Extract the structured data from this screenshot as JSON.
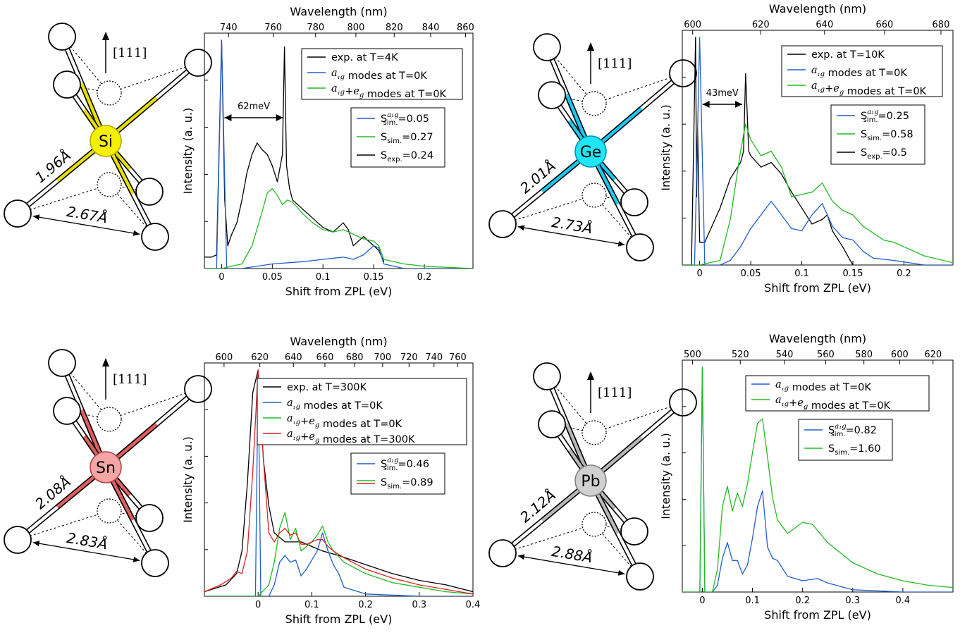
{
  "panels": [
    {
      "element": "Si",
      "atom_color": "#f5f000",
      "bond_highlight": "#e8e000",
      "atom_stroke": "#b0a800",
      "bond_length": "1.96Å",
      "distance": "2.67Å",
      "direction": "[111]",
      "wl_label": "Wavelength (nm)",
      "x_label": "Shift from ZPL (eV)",
      "y_label": "Intensity (a. u.)",
      "wl_ticks": [
        740,
        760,
        780,
        800,
        820,
        840,
        860
      ],
      "ev_ticks": [
        0,
        0.05,
        0.1,
        0.15,
        0.2
      ],
      "ev_tick_labels": [
        "0",
        "0.05",
        "0.1",
        "0.15",
        "0.2"
      ],
      "xlim_ev": [
        -0.017,
        0.248
      ],
      "zpl_nm": 737,
      "legend1": [
        {
          "pre": "exp. at T=4K",
          "italic": "",
          "post": "",
          "color": "#000000"
        },
        {
          "pre": "",
          "italic": "a₁g",
          "post": " modes at T=0K",
          "color": "#1f5fd0"
        },
        {
          "pre": "",
          "italic": "a₁g+e_g",
          "post": " modes at T=0K",
          "color": "#22bb22"
        }
      ],
      "legend2": [
        {
          "sub": "sim.",
          "sup": "a₁g",
          "value": "=0.05",
          "color": "#1f5fd0"
        },
        {
          "sub": "sim.",
          "sup": "",
          "value": "=0.27",
          "color": "#22bb22"
        },
        {
          "sub": "exp.",
          "sup": "",
          "value": "=0.24",
          "color": "#000000"
        }
      ],
      "arrow_label": "62meV",
      "arrow_range_ev": [
        0.0,
        0.062
      ]
    },
    {
      "element": "Ge",
      "atom_color": "#1ee6f5",
      "bond_highlight": "#1ec8f0",
      "atom_stroke": "#0090b0",
      "bond_length": "2.01Å",
      "distance": "2.73Å",
      "direction": "[111]",
      "wl_label": "Wavelength (nm)",
      "x_label": "Shift from ZPL (eV)",
      "y_label": "Intensity (a. u.)",
      "wl_ticks": [
        600,
        620,
        640,
        660,
        680
      ],
      "ev_ticks": [
        0,
        0.05,
        0.1,
        0.15,
        0.2
      ],
      "ev_tick_labels": [
        "0",
        "0.05",
        "0.1",
        "0.15",
        "0.2"
      ],
      "xlim_ev": [
        -0.017,
        0.248
      ],
      "zpl_nm": 602,
      "legend1": [
        {
          "pre": "exp. at T=10K",
          "italic": "",
          "post": "",
          "color": "#000000"
        },
        {
          "pre": "",
          "italic": "a₁g",
          "post": " modes at T=0K",
          "color": "#1f5fd0"
        },
        {
          "pre": "",
          "italic": "a₁g+e_g",
          "post": " modes at T=0K",
          "color": "#22bb22"
        }
      ],
      "legend2": [
        {
          "sub": "sim.",
          "sup": "a₁g",
          "value": "=0.25",
          "color": "#1f5fd0"
        },
        {
          "sub": "sim.",
          "sup": "",
          "value": "=0.58",
          "color": "#22bb22"
        },
        {
          "sub": "exp.",
          "sup": "",
          "value": "=0.5",
          "color": "#000000"
        }
      ],
      "arrow_label": "43meV",
      "arrow_range_ev": [
        0.0,
        0.043
      ]
    },
    {
      "element": "Sn",
      "atom_color": "#f4a6a6",
      "bond_highlight": "#e06060",
      "atom_stroke": "#b04040",
      "bond_length": "2.08Å",
      "distance": "2.83Å",
      "direction": "[111]",
      "wl_label": "Wavelength (nm)",
      "x_label": "Shift from ZPL (eV)",
      "y_label": "Intensity (a. u.)",
      "wl_ticks": [
        600,
        620,
        640,
        660,
        680,
        700,
        720,
        740,
        760
      ],
      "ev_ticks": [
        0,
        0.1,
        0.2,
        0.3,
        0.4
      ],
      "ev_tick_labels": [
        "0",
        "0.1",
        "0.2",
        "0.3",
        "0.4"
      ],
      "xlim_ev": [
        -0.1,
        0.4
      ],
      "zpl_nm": 619,
      "legend1": [
        {
          "pre": "exp. at T=300K",
          "italic": "",
          "post": "",
          "color": "#000000"
        },
        {
          "pre": "",
          "italic": "a₁g",
          "post": " modes at T=0K",
          "color": "#1f5fd0"
        },
        {
          "pre": "",
          "italic": "a₁g+e_g",
          "post": " modes at T=0K",
          "color": "#22bb22"
        },
        {
          "pre": "",
          "italic": "a₁g+e_g",
          "post": " modes at T=300K",
          "color": "#dd2222"
        }
      ],
      "legend2": [
        {
          "sub": "sim.",
          "sup": "a₁g",
          "value": "=0.46",
          "color": "#1f5fd0"
        },
        {
          "sub": "sim.",
          "sup": "",
          "value": "=0.89",
          "color": "#22bb22",
          "color2": "#dd2222"
        }
      ],
      "arrow_label": "",
      "arrow_range_ev": []
    },
    {
      "element": "Pb",
      "atom_color": "#d0d0d0",
      "bond_highlight": "#b8b8b8",
      "atom_stroke": "#808080",
      "bond_length": "2.12Å",
      "distance": "2.88Å",
      "direction": "[111]",
      "wl_label": "Wavelength (nm)",
      "x_label": "Shift from ZPL (eV)",
      "y_label": "Intensity (a. u.)",
      "wl_ticks": [
        500,
        520,
        540,
        560,
        580,
        600,
        620
      ],
      "ev_ticks": [
        0,
        0.1,
        0.2,
        0.3,
        0.4
      ],
      "ev_tick_labels": [
        "0",
        "0.1",
        "0.2",
        "0.3",
        "0.4"
      ],
      "xlim_ev": [
        -0.04,
        0.5
      ],
      "zpl_nm": 504,
      "legend1": [
        {
          "pre": "",
          "italic": "a₁g",
          "post": " modes at T=0K",
          "color": "#1f5fd0"
        },
        {
          "pre": "",
          "italic": "a₁g+e_g",
          "post": " modes at T=0K",
          "color": "#22bb22"
        }
      ],
      "legend2": [
        {
          "sub": "sim.",
          "sup": "a₁g",
          "value": "=0.82",
          "color": "#1f5fd0"
        },
        {
          "sub": "sim.",
          "sup": "",
          "value": "=1.60",
          "color": "#22bb22"
        }
      ],
      "arrow_label": "",
      "arrow_range_ev": []
    }
  ],
  "chart_data": [
    {
      "type": "line",
      "panel": "Si",
      "xlabel": "Shift from ZPL (eV)",
      "x2label": "Wavelength (nm)",
      "ylabel": "Intensity (a. u.)",
      "xlim": [
        -0.017,
        0.248
      ],
      "series": [
        {
          "name": "exp. at T=4K",
          "color": "#000000",
          "x": [
            -0.017,
            -0.01,
            -0.005,
            0.0,
            0.003,
            0.006,
            0.01,
            0.015,
            0.02,
            0.025,
            0.03,
            0.035,
            0.04,
            0.045,
            0.05,
            0.055,
            0.06,
            0.062,
            0.064,
            0.067,
            0.07,
            0.075,
            0.08,
            0.09,
            0.1,
            0.11,
            0.12,
            0.125,
            0.13,
            0.135,
            0.14,
            0.145,
            0.15,
            0.155,
            0.16
          ],
          "y": [
            0.05,
            0.05,
            0.06,
            1.0,
            0.3,
            0.1,
            0.15,
            0.2,
            0.3,
            0.42,
            0.5,
            0.55,
            0.52,
            0.5,
            0.45,
            0.38,
            0.5,
            0.97,
            0.45,
            0.35,
            0.3,
            0.28,
            0.26,
            0.22,
            0.18,
            0.16,
            0.2,
            0.17,
            0.1,
            0.12,
            0.14,
            0.12,
            0.1,
            0.08,
            0.03
          ]
        },
        {
          "name": "a1g modes at T=0K",
          "color": "#1f5fd0",
          "x": [
            -0.017,
            -0.005,
            0.0,
            0.005,
            0.02,
            0.05,
            0.08,
            0.1,
            0.12,
            0.13,
            0.14,
            0.15,
            0.155,
            0.16,
            0.18,
            0.248
          ],
          "y": [
            0.0,
            0.0,
            1.0,
            0.0,
            0.0,
            0.02,
            0.03,
            0.04,
            0.05,
            0.04,
            0.06,
            0.1,
            0.09,
            0.02,
            0.0,
            0.0
          ]
        },
        {
          "name": "a1g+eg modes at T=0K",
          "color": "#22bb22",
          "x": [
            -0.017,
            0.0,
            0.02,
            0.03,
            0.04,
            0.045,
            0.05,
            0.055,
            0.06,
            0.065,
            0.07,
            0.08,
            0.09,
            0.1,
            0.11,
            0.12,
            0.13,
            0.14,
            0.15,
            0.155,
            0.16,
            0.18,
            0.2,
            0.248
          ],
          "y": [
            0.0,
            0.0,
            0.02,
            0.1,
            0.25,
            0.33,
            0.35,
            0.32,
            0.28,
            0.3,
            0.29,
            0.24,
            0.2,
            0.17,
            0.16,
            0.17,
            0.15,
            0.13,
            0.12,
            0.1,
            0.04,
            0.02,
            0.01,
            0.0
          ]
        }
      ]
    },
    {
      "type": "line",
      "panel": "Ge",
      "xlabel": "Shift from ZPL (eV)",
      "x2label": "Wavelength (nm)",
      "ylabel": "Intensity (a. u.)",
      "xlim": [
        -0.017,
        0.248
      ],
      "series": [
        {
          "name": "exp. at T=10K",
          "color": "#000000",
          "x": [
            -0.017,
            -0.008,
            -0.004,
            -0.003,
            -0.002,
            0.0,
            0.005,
            0.01,
            0.02,
            0.03,
            0.04,
            0.043,
            0.045,
            0.048,
            0.05,
            0.06,
            0.07,
            0.08,
            0.09,
            0.1,
            0.11,
            0.12,
            0.125,
            0.13,
            0.14,
            0.15
          ],
          "y": [
            0.0,
            0.0,
            1.0,
            0.3,
            0.6,
            0.1,
            0.1,
            0.15,
            0.25,
            0.38,
            0.45,
            0.5,
            0.84,
            0.5,
            0.48,
            0.43,
            0.45,
            0.4,
            0.32,
            0.25,
            0.18,
            0.2,
            0.22,
            0.15,
            0.08,
            0.0
          ]
        },
        {
          "name": "a1g modes at T=0K",
          "color": "#1f5fd0",
          "x": [
            -0.017,
            -0.005,
            0.0,
            0.005,
            0.02,
            0.03,
            0.04,
            0.05,
            0.06,
            0.07,
            0.08,
            0.09,
            0.1,
            0.11,
            0.12,
            0.13,
            0.14,
            0.15,
            0.16,
            0.17,
            0.19,
            0.22,
            0.248
          ],
          "y": [
            0.0,
            0.0,
            1.0,
            0.0,
            0.0,
            0.02,
            0.08,
            0.16,
            0.22,
            0.28,
            0.22,
            0.16,
            0.15,
            0.22,
            0.27,
            0.17,
            0.12,
            0.11,
            0.06,
            0.03,
            0.02,
            0.0,
            0.0
          ]
        },
        {
          "name": "a1g+eg modes at T=0K",
          "color": "#22bb22",
          "x": [
            -0.017,
            0.0,
            0.02,
            0.03,
            0.04,
            0.045,
            0.05,
            0.06,
            0.07,
            0.08,
            0.09,
            0.1,
            0.11,
            0.12,
            0.13,
            0.14,
            0.15,
            0.16,
            0.18,
            0.19,
            0.2,
            0.22,
            0.248
          ],
          "y": [
            0.0,
            0.0,
            0.02,
            0.2,
            0.5,
            0.62,
            0.55,
            0.48,
            0.5,
            0.43,
            0.3,
            0.31,
            0.32,
            0.36,
            0.28,
            0.24,
            0.22,
            0.17,
            0.11,
            0.1,
            0.08,
            0.04,
            0.01
          ]
        }
      ]
    },
    {
      "type": "line",
      "panel": "Sn",
      "xlabel": "Shift from ZPL (eV)",
      "x2label": "Wavelength (nm)",
      "ylabel": "Intensity (a. u.)",
      "xlim": [
        -0.1,
        0.4
      ],
      "series": [
        {
          "name": "exp. at T=300K",
          "color": "#000000",
          "x": [
            -0.1,
            -0.06,
            -0.04,
            -0.03,
            -0.02,
            -0.01,
            0.0,
            0.01,
            0.02,
            0.03,
            0.05,
            0.08,
            0.1,
            0.12,
            0.15,
            0.2,
            0.25,
            0.3,
            0.35,
            0.4
          ],
          "y": [
            0.02,
            0.05,
            0.1,
            0.2,
            0.5,
            0.9,
            1.0,
            0.6,
            0.4,
            0.28,
            0.24,
            0.24,
            0.22,
            0.2,
            0.18,
            0.14,
            0.1,
            0.07,
            0.05,
            0.02
          ]
        },
        {
          "name": "a1g modes at T=0K",
          "color": "#1f5fd0",
          "x": [
            -0.1,
            -0.005,
            0.0,
            0.005,
            0.02,
            0.03,
            0.04,
            0.05,
            0.06,
            0.07,
            0.08,
            0.09,
            0.1,
            0.11,
            0.12,
            0.13,
            0.14,
            0.15,
            0.16,
            0.2,
            0.3,
            0.4
          ],
          "y": [
            0.0,
            0.0,
            1.0,
            0.0,
            0.0,
            0.05,
            0.15,
            0.18,
            0.15,
            0.16,
            0.09,
            0.12,
            0.16,
            0.2,
            0.28,
            0.2,
            0.14,
            0.1,
            0.04,
            0.01,
            0.0,
            0.0
          ]
        },
        {
          "name": "a1g+eg modes at T=0K",
          "color": "#22bb22",
          "x": [
            -0.1,
            0.0,
            0.02,
            0.03,
            0.04,
            0.05,
            0.06,
            0.07,
            0.08,
            0.09,
            0.1,
            0.11,
            0.12,
            0.13,
            0.14,
            0.16,
            0.2,
            0.25,
            0.3,
            0.35,
            0.4
          ],
          "y": [
            0.0,
            0.0,
            0.05,
            0.15,
            0.3,
            0.37,
            0.25,
            0.3,
            0.2,
            0.22,
            0.24,
            0.27,
            0.31,
            0.24,
            0.2,
            0.15,
            0.1,
            0.06,
            0.04,
            0.02,
            0.01
          ]
        },
        {
          "name": "a1g+eg modes at T=300K",
          "color": "#dd2222",
          "x": [
            -0.1,
            -0.07,
            -0.05,
            -0.04,
            -0.03,
            -0.02,
            -0.01,
            0.0,
            0.01,
            0.02,
            0.03,
            0.04,
            0.05,
            0.06,
            0.07,
            0.08,
            0.09,
            0.1,
            0.11,
            0.12,
            0.13,
            0.14,
            0.16,
            0.2,
            0.25,
            0.3,
            0.35,
            0.4
          ],
          "y": [
            0.02,
            0.05,
            0.08,
            0.11,
            0.1,
            0.2,
            0.55,
            1.0,
            0.6,
            0.28,
            0.24,
            0.28,
            0.3,
            0.27,
            0.28,
            0.23,
            0.23,
            0.24,
            0.25,
            0.25,
            0.22,
            0.2,
            0.17,
            0.12,
            0.08,
            0.05,
            0.03,
            0.01
          ]
        }
      ]
    },
    {
      "type": "line",
      "panel": "Pb",
      "xlabel": "Shift from ZPL (eV)",
      "x2label": "Wavelength (nm)",
      "ylabel": "Intensity (a. u.)",
      "xlim": [
        -0.04,
        0.5
      ],
      "series": [
        {
          "name": "a1g modes at T=0K",
          "color": "#1f5fd0",
          "x": [
            -0.04,
            -0.005,
            0.0,
            0.005,
            0.02,
            0.03,
            0.04,
            0.05,
            0.06,
            0.07,
            0.08,
            0.09,
            0.1,
            0.11,
            0.12,
            0.13,
            0.14,
            0.15,
            0.17,
            0.2,
            0.23,
            0.25,
            0.3,
            0.4,
            0.5
          ],
          "y": [
            0.0,
            0.0,
            1.0,
            0.0,
            0.0,
            0.03,
            0.15,
            0.22,
            0.14,
            0.14,
            0.08,
            0.12,
            0.24,
            0.38,
            0.45,
            0.2,
            0.15,
            0.14,
            0.07,
            0.05,
            0.06,
            0.04,
            0.01,
            0.0,
            0.0
          ]
        },
        {
          "name": "a1g+eg modes at T=0K",
          "color": "#22bb22",
          "x": [
            -0.04,
            -0.005,
            0.0,
            0.005,
            0.02,
            0.03,
            0.04,
            0.05,
            0.06,
            0.07,
            0.08,
            0.09,
            0.1,
            0.11,
            0.12,
            0.13,
            0.14,
            0.15,
            0.17,
            0.2,
            0.22,
            0.25,
            0.3,
            0.35,
            0.4,
            0.45,
            0.5
          ],
          "y": [
            0.0,
            0.0,
            1.0,
            0.0,
            0.0,
            0.1,
            0.38,
            0.47,
            0.36,
            0.44,
            0.38,
            0.48,
            0.62,
            0.75,
            0.77,
            0.6,
            0.42,
            0.32,
            0.26,
            0.31,
            0.3,
            0.22,
            0.13,
            0.08,
            0.05,
            0.03,
            0.02
          ]
        }
      ]
    }
  ]
}
